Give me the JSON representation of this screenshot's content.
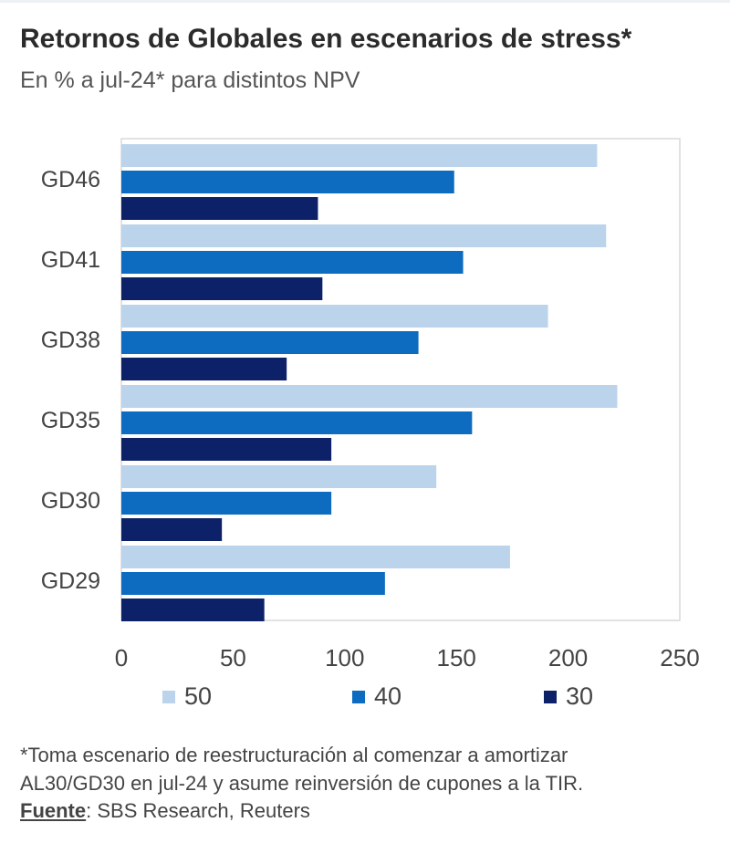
{
  "title": "Retornos de Globales en escenarios de stress*",
  "subtitle": "En % a jul-24* para distintos NPV",
  "colors": {
    "s50": "#bcd3ec",
    "s40": "#0d6cc0",
    "s30": "#0d2168",
    "frame": "#d9d9d9"
  },
  "chart_data": {
    "type": "bar",
    "orientation": "horizontal",
    "categories": [
      "GD46",
      "GD41",
      "GD38",
      "GD35",
      "GD30",
      "GD29"
    ],
    "series": [
      {
        "name": "50",
        "values": [
          213,
          217,
          191,
          222,
          141,
          174
        ]
      },
      {
        "name": "40",
        "values": [
          149,
          153,
          133,
          157,
          94,
          118
        ]
      },
      {
        "name": "30",
        "values": [
          88,
          90,
          74,
          94,
          45,
          64
        ]
      }
    ],
    "xlim": [
      0,
      250
    ],
    "xticks": [
      "0",
      "50",
      "100",
      "150",
      "200",
      "250"
    ],
    "xlabel": "",
    "ylabel": "",
    "legend_position": "bottom"
  },
  "footnote": {
    "line1": "*Toma escenario de reestructuración al comenzar a amortizar",
    "line2": "AL30/GD30 en jul-24 y asume reinversión de cupones a la TIR."
  },
  "source": {
    "label": "Fuente",
    "text": ": SBS Research, Reuters"
  }
}
